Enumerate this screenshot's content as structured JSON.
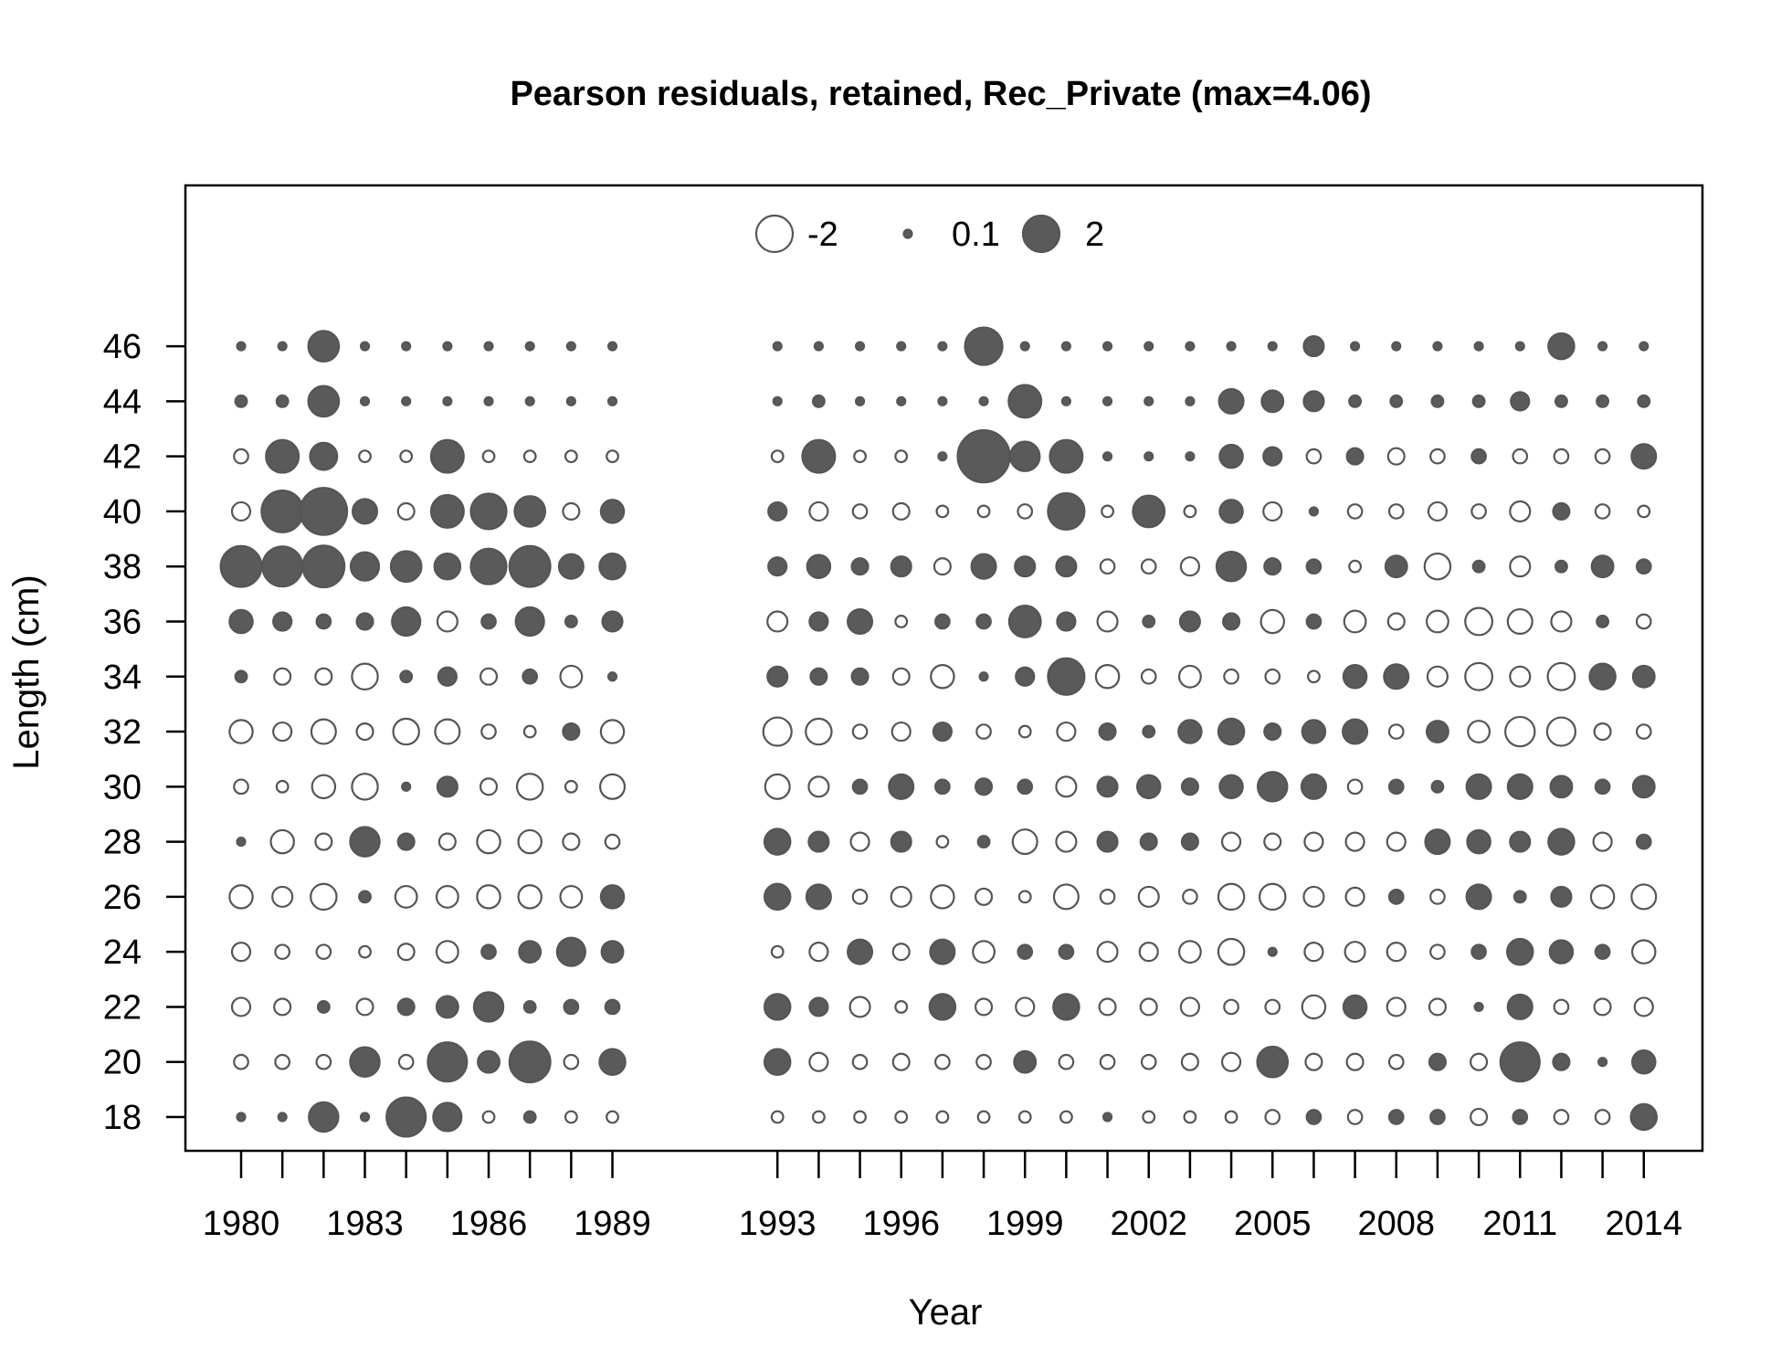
{
  "chart_data": {
    "type": "bubble",
    "title": "Pearson residuals, retained, Rec_Private (max=4.06)",
    "xlabel": "Year",
    "ylabel": "Length (cm)",
    "x_ticks": [
      1980,
      1983,
      1986,
      1989,
      1993,
      1996,
      1999,
      2002,
      2005,
      2008,
      2011,
      2014
    ],
    "y_ticks": [
      18,
      20,
      22,
      24,
      26,
      28,
      30,
      32,
      34,
      36,
      38,
      40,
      42,
      44,
      46
    ],
    "xlim": [
      1979.1,
      2016.1
    ],
    "ylim": [
      16.75,
      52
    ],
    "legend": {
      "position": "top-center",
      "entries": [
        {
          "label": "-2",
          "value": -2
        },
        {
          "label": "0.1",
          "value": 0.1
        },
        {
          "label": "2",
          "value": 2
        }
      ]
    },
    "colors": {
      "positive_fill": "#5a5a5a",
      "negative_fill": "#ffffff",
      "stroke": "#555555"
    },
    "years": [
      1980,
      1981,
      1982,
      1983,
      1984,
      1985,
      1986,
      1987,
      1988,
      1989,
      1993,
      1994,
      1995,
      1996,
      1997,
      1998,
      1999,
      2000,
      2001,
      2002,
      2003,
      2004,
      2005,
      2006,
      2007,
      2008,
      2009,
      2010,
      2011,
      2012,
      2013,
      2014
    ],
    "lengths": [
      18,
      20,
      22,
      24,
      26,
      28,
      30,
      32,
      34,
      36,
      38,
      40,
      42,
      44,
      46
    ],
    "residuals": [
      [
        0.1,
        0.5,
        0.4,
        0.5,
        0.8,
        0.1,
        0.5,
        0.8,
        0.3,
        0.8,
        2.5,
        0.8,
        0.6,
        1.2,
        0.1,
        0.0,
        0.1,
        0.1,
        0.1,
        0.1,
        0.0,
        0.0,
        0.1
      ],
      [
        0.1,
        0.3,
        0.4,
        0.4,
        0.6,
        0.6,
        0.1,
        0.5,
        0.1,
        0.7,
        2.4,
        2.6,
        1.1,
        1.6,
        0.5,
        0.1,
        0.0,
        0.0,
        0.1,
        0.1,
        0.0,
        0.0,
        0.1
      ],
      [
        1.3,
        0.3,
        0.2,
        0.4,
        1.0,
        0.4,
        0.8,
        0.9,
        0.4,
        0.3,
        2.6,
        3.3,
        1.1,
        1.6,
        1.6,
        1.6,
        0.0,
        0.0,
        0.0,
        0.1,
        0.0,
        0.0,
        0.1
      ],
      [
        0.1,
        1.3,
        0.4,
        0.3,
        0.2,
        1.3,
        0.9,
        0.4,
        0.9,
        0.4,
        1.2,
        0.9,
        0.2,
        0.1,
        0.0,
        0.0,
        0.1,
        0.1,
        0.1,
        0.1,
        0.0,
        0.0,
        0.1
      ],
      [
        2.3,
        0.4,
        0.5,
        0.7,
        0.7,
        0.6,
        0.1,
        0.8,
        0.2,
        1.2,
        1.4,
        0.4,
        0.2,
        0.1,
        0.0,
        0.0,
        0.1,
        0.1,
        0.1,
        0.1,
        0.0,
        0.0,
        0.1
      ],
      [
        1.2,
        2.3,
        0.7,
        0.8,
        0.7,
        0.4,
        0.7,
        0.9,
        0.7,
        0.7,
        1.0,
        1.6,
        1.6,
        0.1,
        0.0,
        0.0,
        0.1,
        0.1,
        0.1,
        0.1,
        0.0,
        0.0,
        0.1
      ],
      [
        0.3,
        0.7,
        0.7,
        0.3,
        0.8,
        0.3,
        0.6,
        0.8,
        0.8,
        1.2,
        0.9,
        1.0,
        1.0,
        0.1,
        0.0,
        0.0,
        0.1,
        0.1,
        0.1,
        0.1,
        0.0,
        0.0,
        0.1
      ],
      [
        0.2,
        2.5,
        0.2,
        0.7,
        0.8,
        0.8,
        0.9,
        0.5,
        0.4,
        0.8,
        1.0,
        1.0,
        1.2,
        0.1,
        0.0,
        0.0,
        0.1,
        0.1,
        0.1,
        0.1,
        0.0,
        0.0,
        0.1
      ],
      [
        0.3,
        0.4,
        0.4,
        0.3,
        0.4,
        0.4,
        0.4,
        0.2,
        0.4,
        0.4,
        0.3,
        0.4,
        0.5,
        0.1,
        0.0,
        0.0,
        0.1,
        0.1,
        0.1,
        0.1,
        0.0,
        0.0,
        0.1
      ],
      [
        0.3,
        0.4,
        0.4,
        0.3,
        0.4,
        0.4,
        0.4,
        0.2,
        0.4,
        0.4,
        0.3,
        0.4,
        0.5,
        0.1,
        0.0,
        0.0,
        0.1,
        0.1,
        0.1,
        0.1,
        0.0,
        0.0,
        0.1
      ]
    ],
    "residuals_note": "",
    "columns_1980_1989": {
      "1980": [
        0.1,
        -0.3,
        -0.5,
        -0.5,
        -0.8,
        0.1,
        -0.3,
        -0.8,
        0.2,
        0.8,
        2.5,
        -0.5,
        -0.3,
        0.2,
        0.1
      ],
      "1981": [
        0.1,
        -0.3,
        -0.4,
        -0.3,
        -0.6,
        -0.8,
        -0.2,
        -0.5,
        -0.4,
        0.5,
        2.4,
        2.6,
        1.6,
        0.2,
        0.1
      ],
      "1982": [
        1.3,
        -0.3,
        0.2,
        -0.3,
        -1.0,
        -0.4,
        -0.8,
        -0.9,
        -0.4,
        0.3,
        2.6,
        3.3,
        1.1,
        1.4,
        1.4
      ],
      "1983": [
        0.1,
        1.3,
        -0.4,
        -0.2,
        0.2,
        1.3,
        -1.0,
        -0.4,
        -1.0,
        0.4,
        1.2,
        0.9,
        -0.2,
        0.1,
        0.1
      ],
      "1984": [
        2.3,
        -0.3,
        0.4,
        -0.4,
        -0.7,
        0.4,
        0.1,
        -1.0,
        0.2,
        1.2,
        1.4,
        -0.4,
        -0.2,
        0.1,
        0.1
      ],
      "1985": [
        1.2,
        2.3,
        0.7,
        -0.7,
        -0.7,
        -0.4,
        0.6,
        -0.9,
        0.5,
        -0.6,
        1.0,
        1.6,
        1.6,
        0.1,
        0.1
      ],
      "1986": [
        -0.2,
        0.7,
        1.3,
        0.3,
        -0.8,
        -0.8,
        -0.4,
        -0.3,
        -0.4,
        0.3,
        1.9,
        1.9,
        -0.2,
        0.1,
        0.1
      ],
      "1987": [
        0.2,
        2.5,
        0.2,
        0.7,
        -0.8,
        -0.8,
        -1.0,
        -0.2,
        0.3,
        1.2,
        2.5,
        1.4,
        -0.2,
        0.1,
        0.1
      ],
      "1988": [
        -0.2,
        -0.3,
        0.3,
        1.2,
        -0.7,
        -0.4,
        -0.2,
        0.4,
        -0.7,
        0.2,
        0.9,
        -0.4,
        -0.2,
        0.1,
        0.1
      ],
      "1989": [
        -0.2,
        1.0,
        0.3,
        0.7,
        0.8,
        -0.3,
        -0.9,
        -0.8,
        0.1,
        0.6,
        1.0,
        0.8,
        -0.2,
        0.1,
        0.1
      ]
    },
    "columns_1993_2014": {
      "1993": [
        -0.2,
        1.0,
        1.0,
        -0.2,
        1.0,
        1.0,
        -0.9,
        -1.2,
        0.6,
        -0.6,
        0.5,
        0.5,
        -0.2,
        0.1,
        0.1
      ],
      "1994": [
        -0.2,
        -0.5,
        0.5,
        -0.5,
        0.9,
        0.6,
        -0.6,
        -1.0,
        0.4,
        0.5,
        0.8,
        -0.5,
        1.6,
        0.2,
        0.1
      ],
      "1995": [
        -0.2,
        -0.3,
        -0.6,
        0.9,
        -0.3,
        -0.5,
        0.3,
        -0.3,
        0.4,
        0.9,
        0.4,
        -0.3,
        -0.2,
        0.1,
        0.1
      ],
      "1996": [
        -0.2,
        -0.4,
        -0.2,
        -0.4,
        -0.6,
        0.6,
        0.9,
        -0.5,
        -0.4,
        -0.2,
        0.6,
        -0.4,
        -0.2,
        0.1,
        0.1
      ],
      "1997": [
        -0.2,
        -0.3,
        1.0,
        0.9,
        -0.8,
        -0.2,
        0.3,
        0.5,
        -0.8,
        0.3,
        -0.4,
        -0.2,
        0.1,
        0.1,
        0.1
      ],
      "1998": [
        -0.2,
        -0.3,
        -0.4,
        -0.7,
        -0.4,
        0.2,
        0.4,
        -0.3,
        0.1,
        0.3,
        0.9,
        -0.2,
        4.06,
        0.1,
        2.1
      ],
      "1999": [
        -0.2,
        0.7,
        -0.5,
        0.3,
        -0.2,
        -0.9,
        0.3,
        -0.2,
        0.5,
        1.5,
        0.6,
        -0.3,
        1.3,
        1.6,
        0.1
      ],
      "2000": [
        -0.2,
        -0.3,
        1.0,
        0.3,
        -0.9,
        -0.6,
        -0.6,
        -0.5,
        2.0,
        0.5,
        0.6,
        2.0,
        1.6,
        0.1,
        0.1
      ],
      "2001": [
        0.1,
        -0.3,
        -0.4,
        -0.6,
        -0.3,
        0.6,
        0.6,
        0.4,
        -0.8,
        -0.6,
        -0.3,
        -0.2,
        0.1,
        0.1,
        0.1
      ],
      "2002": [
        -0.2,
        -0.3,
        -0.4,
        -0.5,
        -0.6,
        0.4,
        0.8,
        0.2,
        -0.3,
        0.2,
        -0.3,
        1.5,
        0.1,
        0.1,
        0.1
      ],
      "2003": [
        -0.2,
        -0.4,
        -0.5,
        -0.7,
        -0.3,
        0.4,
        0.4,
        0.8,
        -0.7,
        0.6,
        -0.5,
        -0.2,
        0.1,
        0.1,
        0.1
      ],
      "2004": [
        -0.2,
        -0.5,
        -0.3,
        -1.0,
        -1.0,
        -0.5,
        0.8,
        1.0,
        -0.3,
        0.4,
        1.3,
        0.8,
        0.8,
        0.9,
        0.1
      ],
      "2005": [
        -0.3,
        1.4,
        -0.3,
        0.1,
        -1.0,
        -0.4,
        1.3,
        0.4,
        -0.3,
        -0.8,
        0.4,
        -0.5,
        0.5,
        0.7,
        0.1
      ],
      "2006": [
        0.3,
        -0.4,
        -0.8,
        -0.5,
        -0.6,
        -0.5,
        0.9,
        0.8,
        -0.2,
        0.3,
        0.3,
        0.1,
        -0.3,
        0.6,
        0.6
      ],
      "2007": [
        -0.3,
        -0.4,
        0.8,
        -0.6,
        -0.5,
        -0.5,
        -0.3,
        0.9,
        0.8,
        -0.7,
        -0.2,
        -0.3,
        0.4,
        0.2,
        0.1
      ],
      "2008": [
        0.3,
        -0.3,
        -0.5,
        -0.5,
        0.3,
        -0.5,
        0.3,
        -0.3,
        0.9,
        -0.4,
        0.7,
        -0.3,
        -0.4,
        0.2,
        0.1
      ],
      "2009": [
        0.3,
        0.4,
        -0.4,
        -0.3,
        -0.3,
        0.9,
        0.2,
        0.7,
        -0.6,
        -0.7,
        -1.0,
        -0.5,
        -0.3,
        0.2,
        0.1
      ],
      "2010": [
        -0.4,
        -0.4,
        0.1,
        0.3,
        0.9,
        0.8,
        0.9,
        -0.7,
        -1.1,
        -1.1,
        0.2,
        -0.3,
        0.3,
        0.2,
        0.1
      ],
      "2011": [
        0.3,
        2.3,
        0.9,
        1.0,
        0.2,
        0.6,
        0.9,
        -1.3,
        -0.6,
        -0.9,
        -0.6,
        -0.6,
        -0.3,
        0.5,
        0.1
      ],
      "2012": [
        -0.3,
        0.4,
        -0.3,
        0.8,
        0.6,
        1.0,
        0.7,
        -1.2,
        -1.1,
        -0.6,
        0.2,
        0.4,
        -0.3,
        0.2,
        1.0
      ],
      "2013": [
        -0.3,
        0.1,
        -0.4,
        0.3,
        -0.8,
        -0.5,
        0.3,
        -0.4,
        1.0,
        0.2,
        0.7,
        -0.3,
        -0.3,
        0.2,
        0.1
      ],
      "2014": [
        1.0,
        0.8,
        -0.5,
        -0.8,
        -0.9,
        0.3,
        0.7,
        -0.3,
        0.7,
        -0.3,
        0.3,
        -0.2,
        0.9,
        0.2,
        0.1
      ]
    }
  }
}
